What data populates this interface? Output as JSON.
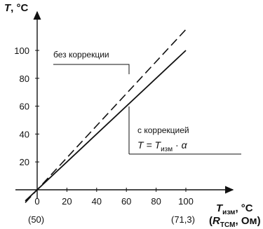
{
  "chart_data": {
    "type": "line",
    "x": [
      0,
      100
    ],
    "series": [
      {
        "values": [
          0,
          115
        ],
        "style": "dashed"
      },
      {
        "values": [
          0,
          100
        ],
        "style": "solid"
      }
    ],
    "xlim": [
      -5,
      110
    ],
    "ylim": [
      -5,
      120
    ],
    "xticks": [
      "0",
      "20",
      "40",
      "60",
      "80",
      "100"
    ],
    "yticks": [
      "20",
      "40",
      "60",
      "80",
      "100"
    ],
    "ylabel": {
      "main": "T",
      "unit": ", °C"
    },
    "xlabel": {
      "main": "T",
      "sub": "изм",
      "unit": ", °C"
    },
    "xlabel2": {
      "open": "(",
      "main": "R",
      "sub": "TCM",
      "unit": ", Ом)"
    },
    "x_annotations": {
      "left": "(50)",
      "right": "(71,3)"
    },
    "annotations": {
      "without_correction": "без коррекции",
      "with_correction": "с коррекцией",
      "formula": {
        "lhs": "T = ",
        "main": "T",
        "sub": "изм",
        "op": " · ",
        "alpha": "α"
      }
    },
    "grid": false,
    "legend": "none"
  }
}
